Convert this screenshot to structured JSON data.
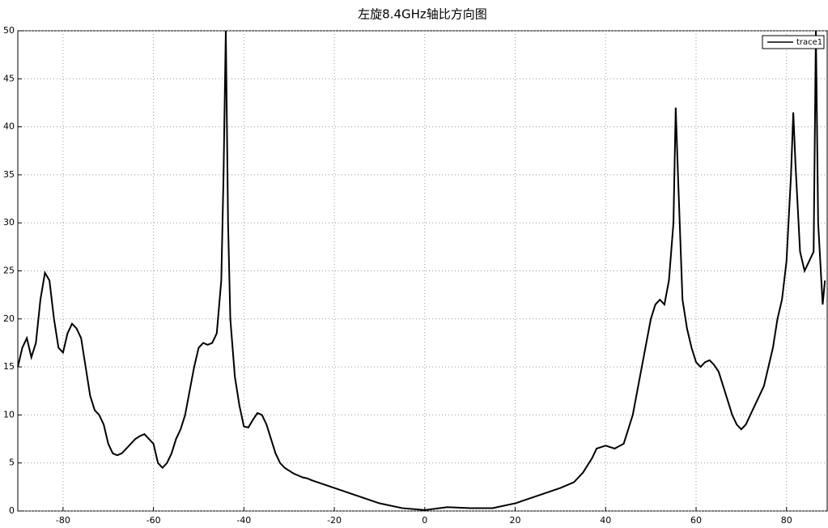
{
  "chart_data": {
    "type": "line",
    "title": "左旋8.4GHz轴比方向图",
    "x": [
      -90,
      -89,
      -88,
      -87,
      -86,
      -85,
      -84,
      -83,
      -82,
      -81,
      -80,
      -79,
      -78,
      -77,
      -76,
      -75,
      -74,
      -73,
      -72,
      -71,
      -70,
      -69,
      -68,
      -67,
      -66,
      -65,
      -64,
      -63,
      -62,
      -61,
      -60,
      -59,
      -58,
      -57,
      -56,
      -55,
      -54,
      -53,
      -52,
      -51,
      -50,
      -49,
      -48,
      -47,
      -46,
      -45,
      -44.5,
      -44,
      -43.5,
      -43,
      -42,
      -41,
      -40,
      -39,
      -38,
      -37,
      -36,
      -35,
      -34,
      -33,
      -32,
      -31,
      -30,
      -29,
      -28,
      -27,
      -26,
      -25,
      -20,
      -15,
      -10,
      -5,
      0,
      5,
      10,
      15,
      20,
      25,
      30,
      33,
      35,
      37,
      38,
      40,
      42,
      44,
      46,
      48,
      50,
      51,
      52,
      53,
      54,
      55,
      55.5,
      56,
      57,
      58,
      59,
      60,
      61,
      62,
      63,
      64,
      65,
      66,
      67,
      68,
      69,
      70,
      71,
      72,
      73,
      74,
      75,
      76,
      77,
      78,
      79,
      80,
      81,
      81.5,
      82,
      83,
      84,
      85,
      86,
      86.5,
      87,
      88,
      88.5
    ],
    "series": [
      {
        "name": "trace1",
        "color": "#000000",
        "values": [
          15,
          17,
          18,
          16,
          17.5,
          22,
          24.8,
          24,
          20,
          17,
          16.5,
          18.5,
          19.5,
          19,
          18,
          15,
          12,
          10.5,
          10,
          9,
          7,
          6,
          5.8,
          6,
          6.5,
          7,
          7.5,
          7.8,
          8,
          7.5,
          7,
          5,
          4.5,
          5,
          6,
          7.5,
          8.5,
          10,
          12.5,
          15,
          17,
          17.5,
          17.3,
          17.5,
          18.5,
          24,
          35,
          50,
          30,
          20,
          14,
          11,
          8.8,
          8.7,
          9.5,
          10.2,
          10,
          9,
          7.5,
          6,
          5,
          4.5,
          4.2,
          3.9,
          3.7,
          3.5,
          3.4,
          3.2,
          2.4,
          1.6,
          0.8,
          0.3,
          0.1,
          0.4,
          0.3,
          0.3,
          0.8,
          1.6,
          2.4,
          3,
          4,
          5.5,
          6.5,
          6.8,
          6.5,
          7,
          10,
          15,
          20,
          21.5,
          22,
          21.5,
          24,
          30,
          42,
          35,
          22,
          19,
          17,
          15.5,
          15,
          15.5,
          15.7,
          15.2,
          14.5,
          13,
          11.5,
          10,
          9,
          8.5,
          9,
          10,
          11,
          12,
          13,
          15,
          17,
          20,
          22,
          26,
          35,
          41.5,
          36,
          27,
          25,
          26,
          27,
          50,
          30,
          21.5,
          24
        ]
      }
    ],
    "xlim": [
      -90,
      89
    ],
    "ylim": [
      0,
      50
    ],
    "xticks": [
      -80,
      -60,
      -40,
      -20,
      0,
      20,
      40,
      60,
      80
    ],
    "yticks": [
      0,
      5,
      10,
      15,
      20,
      25,
      30,
      35,
      40,
      45,
      50
    ],
    "grid": true,
    "legend": "upper right"
  }
}
